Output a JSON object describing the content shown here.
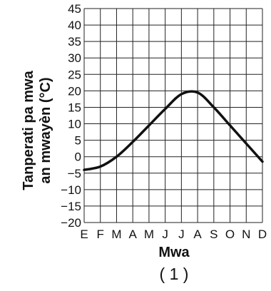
{
  "chart_data": {
    "type": "line",
    "xlabel": "Mwa",
    "ylabel_line1": "Tanperati pa mwa",
    "ylabel_line2": "an mwayèn (°C)",
    "panel_label": "( 1 )",
    "categories": [
      "E",
      "F",
      "M",
      "A",
      "M",
      "J",
      "J",
      "A",
      "S",
      "O",
      "N",
      "D"
    ],
    "y_ticks": [
      45,
      40,
      35,
      30,
      25,
      20,
      15,
      10,
      5,
      0,
      -5,
      -10,
      -15,
      -20
    ],
    "ylim": [
      -20,
      45
    ],
    "grid": true,
    "series": [
      {
        "values": [
          -4,
          -3,
          0,
          4.5,
          9.5,
          14.5,
          19,
          19.5,
          15,
          9.5,
          4,
          -1.5
        ]
      }
    ]
  }
}
